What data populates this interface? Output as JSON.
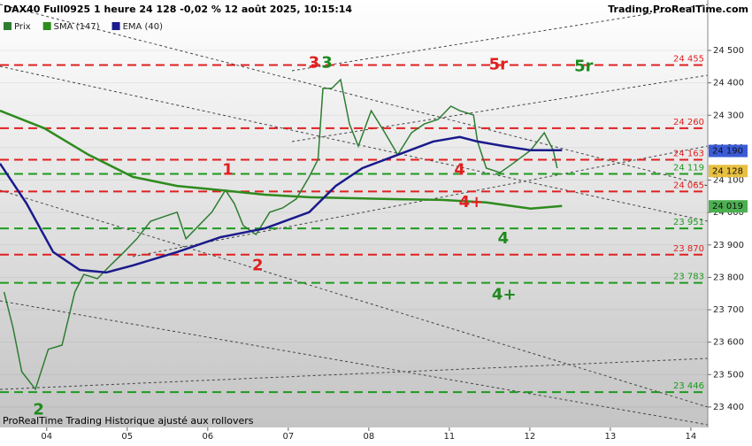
{
  "header": {
    "title": "DAX40 Full0925 1 heure 24 128 -0,02 % 12 août 2025, 10:15:14",
    "source": "Trading.ProRealTime.com"
  },
  "footer": "ProRealTime Trading Historique ajusté aux rollovers",
  "chart_data": {
    "type": "line",
    "xlim": [
      -0.58,
      8.21
    ],
    "xticks": [
      {
        "value": 0,
        "label": "04"
      },
      {
        "value": 1,
        "label": "05"
      },
      {
        "value": 2,
        "label": "06"
      },
      {
        "value": 3,
        "label": "07"
      },
      {
        "value": 4,
        "label": "08"
      },
      {
        "value": 5,
        "label": "11"
      },
      {
        "value": 6,
        "label": "12"
      },
      {
        "value": 7,
        "label": "13"
      },
      {
        "value": 8,
        "label": "14"
      }
    ],
    "ylim": [
      23337,
      24601
    ],
    "yticks": [
      {
        "value": 23400,
        "label": "23 400"
      },
      {
        "value": 23500,
        "label": "23 500"
      },
      {
        "value": 23600,
        "label": "23 600"
      },
      {
        "value": 23700,
        "label": "23 700"
      },
      {
        "value": 23800,
        "label": "23 800"
      },
      {
        "value": 23900,
        "label": "23 900"
      },
      {
        "value": 24000,
        "label": "24 000"
      },
      {
        "value": 24100,
        "label": "24 100"
      },
      {
        "value": 24200,
        "label": "24 200"
      },
      {
        "value": 24300,
        "label": "24 300"
      },
      {
        "value": 24400,
        "label": "24 400"
      },
      {
        "value": 24500,
        "label": "24 500"
      }
    ],
    "series": [
      {
        "name": "Prix",
        "color": "#2e7d32",
        "x": [
          -0.53,
          -0.42,
          -0.31,
          -0.14,
          0.02,
          0.19,
          0.35,
          0.46,
          0.63,
          0.79,
          0.96,
          1.12,
          1.29,
          1.45,
          1.62,
          1.73,
          1.89,
          2.05,
          2.22,
          2.33,
          2.44,
          2.6,
          2.77,
          2.93,
          3.1,
          3.26,
          3.37,
          3.43,
          3.54,
          3.65,
          3.76,
          3.87,
          4.03,
          4.2,
          4.36,
          4.53,
          4.69,
          4.86,
          5.02,
          5.13,
          5.3,
          5.35,
          5.46,
          5.63,
          5.79,
          6.01,
          6.18,
          6.29,
          6.34
        ],
        "values": [
          23755,
          23646,
          23509,
          23455,
          23578,
          23591,
          23755,
          23809,
          23796,
          23837,
          23878,
          23919,
          23973,
          23987,
          24001,
          23919,
          23960,
          24001,
          24069,
          24028,
          23960,
          23932,
          24001,
          24014,
          24042,
          24110,
          24164,
          24383,
          24383,
          24410,
          24273,
          24205,
          24314,
          24246,
          24178,
          24246,
          24273,
          24287,
          24328,
          24314,
          24301,
          24219,
          24137,
          24123,
          24151,
          24192,
          24246,
          24192,
          24137
        ]
      },
      {
        "name": "SMA (147)",
        "color": "#2e8b1e",
        "x": [
          -0.58,
          -0.03,
          0.52,
          1.07,
          1.62,
          2.16,
          2.71,
          3.26,
          3.81,
          4.36,
          4.91,
          5.46,
          6.01,
          6.4
        ],
        "values": [
          24314,
          24260,
          24178,
          24110,
          24082,
          24069,
          24055,
          24047,
          24044,
          24041,
          24039,
          24031,
          24012,
          24020
        ]
      },
      {
        "name": "EMA (40)",
        "color": "#1a1a8c",
        "x": [
          -0.58,
          -0.25,
          0.08,
          0.41,
          0.74,
          1.07,
          1.62,
          2.16,
          2.71,
          3.26,
          3.59,
          3.92,
          4.36,
          4.8,
          5.13,
          5.35,
          5.68,
          6.01,
          6.4
        ],
        "values": [
          24151,
          24028,
          23878,
          23823,
          23815,
          23837,
          23878,
          23924,
          23951,
          24001,
          24082,
          24137,
          24178,
          24219,
          24233,
          24219,
          24205,
          24192,
          24192
        ]
      }
    ],
    "levels": [
      {
        "value": 24455,
        "label": "24 455",
        "color": "#e02020"
      },
      {
        "value": 24260,
        "label": "24 260",
        "color": "#e02020"
      },
      {
        "value": 24163,
        "label": "24 163",
        "color": "#e02020"
      },
      {
        "value": 24119,
        "label": "24 119",
        "color": "#1e9a1e"
      },
      {
        "value": 24065,
        "label": "24 065",
        "color": "#e02020"
      },
      {
        "value": 23951,
        "label": "23 951",
        "color": "#1e9a1e"
      },
      {
        "value": 23870,
        "label": "23 870",
        "color": "#e02020"
      },
      {
        "value": 23783,
        "label": "23 783",
        "color": "#1e9a1e"
      },
      {
        "value": 23446,
        "label": "23 446",
        "color": "#1e9a1e"
      }
    ],
    "price_tags": [
      {
        "value": 24190,
        "label": "24 190",
        "color": "#3b5bd6"
      },
      {
        "value": 24128,
        "label": "24 128",
        "color": "#e8c040"
      },
      {
        "value": 24019,
        "label": "24 019",
        "color": "#4caf50"
      }
    ],
    "annotations": [
      {
        "text": "3",
        "x": 3.32,
        "y": 24460,
        "color": "#e02020"
      },
      {
        "text": "3",
        "x": 3.48,
        "y": 24460,
        "color": "#1e8a1e"
      },
      {
        "text": "1",
        "x": 2.25,
        "y": 24130,
        "color": "#e02020"
      },
      {
        "text": "2",
        "x": 2.62,
        "y": 23835,
        "color": "#e02020"
      },
      {
        "text": "2",
        "x": -0.1,
        "y": 23390,
        "color": "#1e8a1e"
      },
      {
        "text": "4",
        "x": 5.13,
        "y": 24130,
        "color": "#e02020"
      },
      {
        "text": "4+",
        "x": 5.27,
        "y": 24030,
        "color": "#e02020"
      },
      {
        "text": "4",
        "x": 5.67,
        "y": 23918,
        "color": "#1e8a1e"
      },
      {
        "text": "4+",
        "x": 5.68,
        "y": 23745,
        "color": "#1e8a1e"
      },
      {
        "text": "5r",
        "x": 5.61,
        "y": 24455,
        "color": "#e02020"
      },
      {
        "text": "5r",
        "x": 6.67,
        "y": 24450,
        "color": "#1e8a1e"
      }
    ]
  }
}
